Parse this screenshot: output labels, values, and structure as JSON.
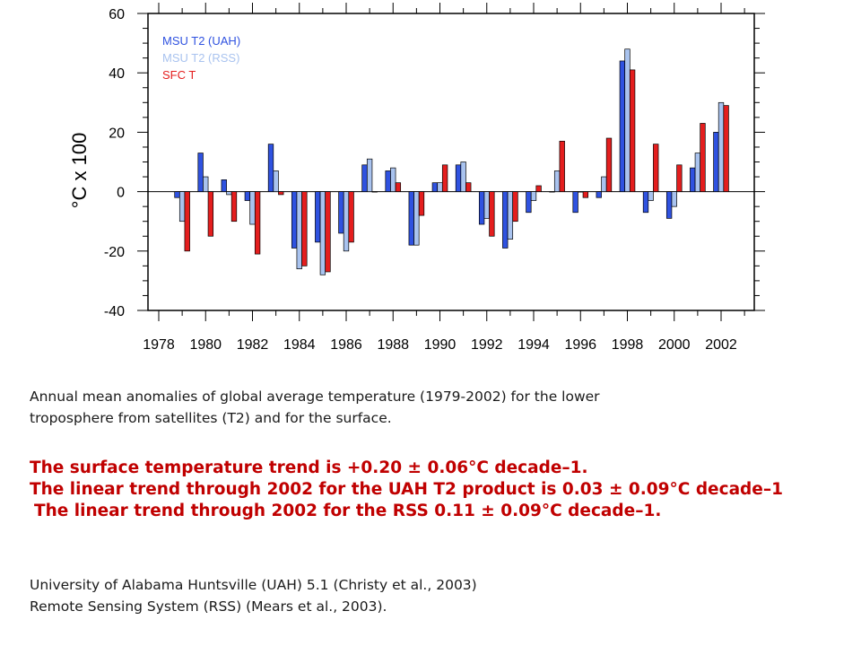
{
  "chart_data": {
    "type": "bar",
    "ylabel": "°C x 100",
    "xlabel": "",
    "ylim": [
      -40,
      60
    ],
    "yticks": [
      -40,
      -20,
      0,
      20,
      40,
      60
    ],
    "xticks": [
      "1978",
      "1980",
      "1982",
      "1984",
      "1986",
      "1988",
      "1990",
      "1992",
      "1994",
      "1996",
      "1998",
      "2000",
      "2002"
    ],
    "categories": [
      "1979",
      "1980",
      "1981",
      "1982",
      "1983",
      "1984",
      "1985",
      "1986",
      "1987",
      "1988",
      "1989",
      "1990",
      "1991",
      "1992",
      "1993",
      "1994",
      "1995",
      "1996",
      "1997",
      "1998",
      "1999",
      "2000",
      "2001",
      "2002"
    ],
    "series": [
      {
        "name": "MSU T2 (UAH)",
        "color": "#2f52e0",
        "values": [
          -2,
          13,
          4,
          -3,
          16,
          -19,
          -17,
          -14,
          9,
          7,
          -18,
          3,
          9,
          -11,
          -19,
          -7,
          0,
          -7,
          -2,
          44,
          -7,
          -9,
          8,
          20
        ]
      },
      {
        "name": "MSU T2 (RSS)",
        "color": "#a9c3ef",
        "values": [
          -10,
          5,
          -1,
          -11,
          7,
          -26,
          -28,
          -20,
          11,
          8,
          -18,
          3,
          10,
          -9,
          -16,
          -3,
          7,
          0,
          5,
          48,
          -3,
          -5,
          13,
          30
        ]
      },
      {
        "name": "SFC T",
        "color": "#e41e1e",
        "values": [
          -20,
          -15,
          -10,
          -21,
          -1,
          -25,
          -27,
          -17,
          0,
          3,
          -8,
          9,
          3,
          -15,
          -10,
          2,
          17,
          -2,
          18,
          41,
          16,
          9,
          23,
          29
        ]
      }
    ],
    "legend": "top-left",
    "grid": false
  },
  "caption": {
    "line1": "Annual mean anomalies of global average temperature (1979-2002)  for the lower",
    "line2": "troposphere from satellites (T2) and for the surface."
  },
  "trends": {
    "line1": "The surface temperature trend is +0.20 ± 0.06°C decade–1.",
    "line2": "The linear trend through 2002 for the UAH T2 product is 0.03 ± 0.09°C decade–1",
    "line3": "The linear trend through 2002 for the RSS 0.11 ± 0.09°C decade–1."
  },
  "references": {
    "line1": "University of Alabama Huntsville (UAH)  5.1 (Christy et al., 2003)",
    "line2": "Remote Sensing System (RSS) (Mears et al., 2003)."
  }
}
